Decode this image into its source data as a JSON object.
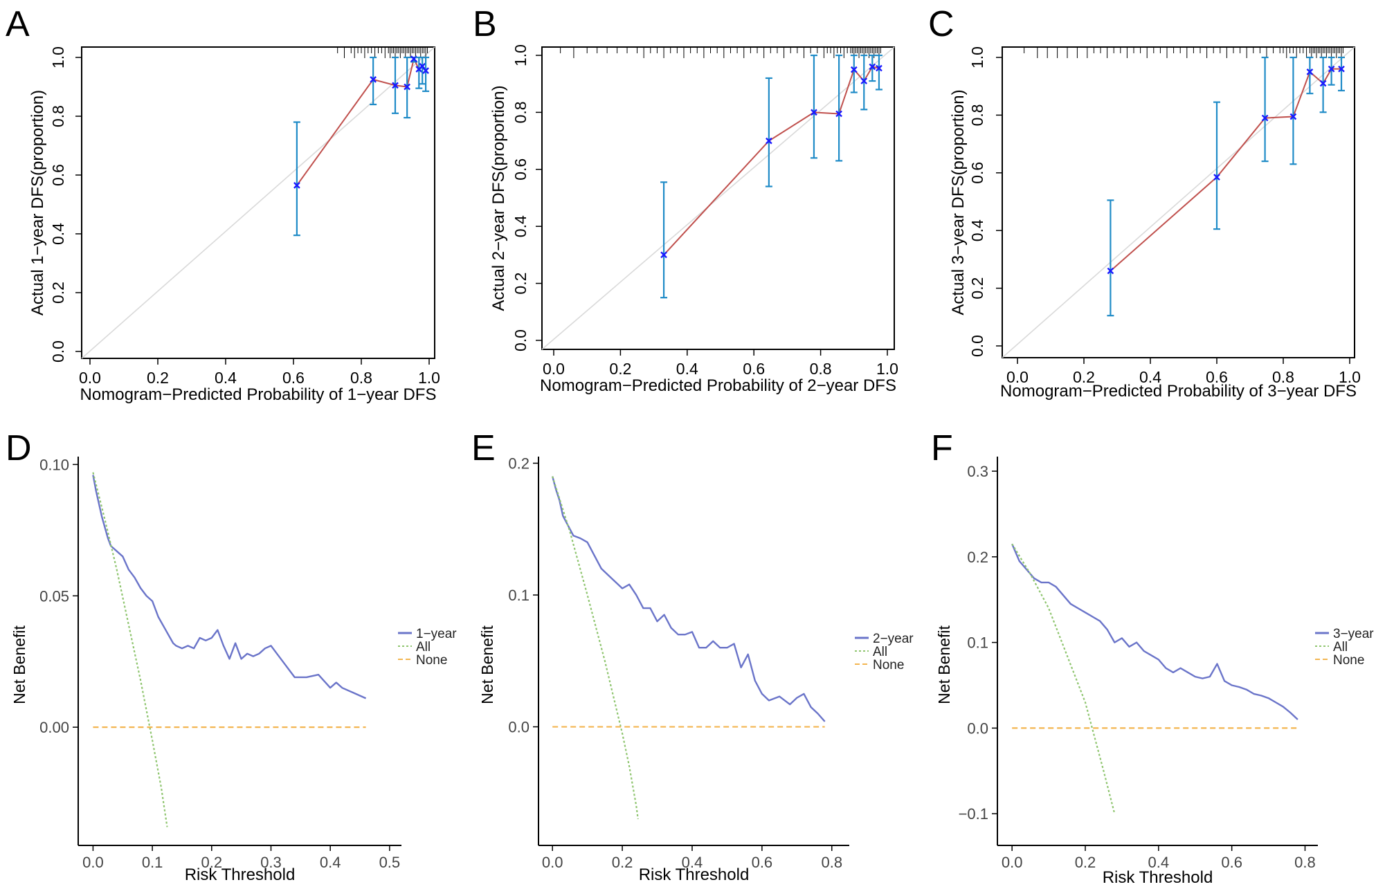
{
  "colors": {
    "axis": "#000000",
    "diagonal": "#d9d9d9",
    "calib_line": "#c0504d",
    "errorbar": "#1f8bc7",
    "point": "#1a1aff",
    "model": "#6a74c9",
    "all": "#8fc56f",
    "none": "#f3b550",
    "tick_label_dca": "#444444"
  },
  "chart_data": [
    {
      "id": "A",
      "type": "scatter",
      "panel_label": "A",
      "title": "",
      "xlabel": "Nomogram−Predicted Probability of 1−year DFS",
      "ylabel": "Actual 1−year DFS(proportion)",
      "xlim": [
        0,
        1.0
      ],
      "ylim": [
        0,
        1.0
      ],
      "xticks": [
        "0.0",
        "0.2",
        "0.4",
        "0.6",
        "0.8",
        "1.0"
      ],
      "yticks": [
        "0.0",
        "0.2",
        "0.4",
        "0.6",
        "0.8",
        "1.0"
      ],
      "diagonal": true,
      "points": [
        {
          "x": 0.61,
          "y": 0.565,
          "lo": 0.395,
          "hi": 0.78
        },
        {
          "x": 0.835,
          "y": 0.925,
          "lo": 0.84,
          "hi": 1.0
        },
        {
          "x": 0.9,
          "y": 0.905,
          "lo": 0.81,
          "hi": 1.0
        },
        {
          "x": 0.935,
          "y": 0.9,
          "lo": 0.795,
          "hi": 1.0
        },
        {
          "x": 0.955,
          "y": 0.995,
          "lo": 0.985,
          "hi": 1.0
        },
        {
          "x": 0.97,
          "y": 0.96,
          "lo": 0.895,
          "hi": 1.0
        },
        {
          "x": 0.98,
          "y": 0.97,
          "lo": 0.91,
          "hi": 1.0
        },
        {
          "x": 0.99,
          "y": 0.955,
          "lo": 0.885,
          "hi": 1.0
        }
      ],
      "rug": [
        0.73,
        0.75,
        0.77,
        0.78,
        0.79,
        0.8,
        0.81,
        0.82,
        0.83,
        0.84,
        0.85,
        0.86,
        0.87,
        0.88,
        0.885,
        0.89,
        0.895,
        0.9,
        0.905,
        0.91,
        0.915,
        0.92,
        0.925,
        0.93,
        0.935,
        0.94,
        0.945,
        0.95,
        0.955,
        0.96,
        0.965,
        0.97,
        0.975,
        0.98,
        0.985,
        0.99,
        0.995
      ]
    },
    {
      "id": "B",
      "type": "scatter",
      "panel_label": "B",
      "title": "",
      "xlabel": "Nomogram−Predicted Probability of 2−year DFS",
      "ylabel": "Actual 2−year DFS(proportion)",
      "xlim": [
        0,
        1.0
      ],
      "ylim": [
        0,
        1.0
      ],
      "xticks": [
        "0.0",
        "0.2",
        "0.4",
        "0.6",
        "0.8",
        "1.0"
      ],
      "yticks": [
        "0.0",
        "0.2",
        "0.4",
        "0.6",
        "0.8",
        "1.0"
      ],
      "diagonal": true,
      "points": [
        {
          "x": 0.33,
          "y": 0.3,
          "lo": 0.15,
          "hi": 0.555
        },
        {
          "x": 0.645,
          "y": 0.7,
          "lo": 0.54,
          "hi": 0.92
        },
        {
          "x": 0.78,
          "y": 0.8,
          "lo": 0.64,
          "hi": 1.0
        },
        {
          "x": 0.855,
          "y": 0.795,
          "lo": 0.63,
          "hi": 1.0
        },
        {
          "x": 0.9,
          "y": 0.95,
          "lo": 0.87,
          "hi": 1.0
        },
        {
          "x": 0.93,
          "y": 0.91,
          "lo": 0.81,
          "hi": 1.0
        },
        {
          "x": 0.955,
          "y": 0.96,
          "lo": 0.91,
          "hi": 1.0
        },
        {
          "x": 0.975,
          "y": 0.955,
          "lo": 0.88,
          "hi": 1.0
        }
      ],
      "rug": [
        0.02,
        0.06,
        0.1,
        0.13,
        0.16,
        0.19,
        0.22,
        0.25,
        0.27,
        0.29,
        0.31,
        0.33,
        0.35,
        0.37,
        0.39,
        0.41,
        0.43,
        0.45,
        0.47,
        0.49,
        0.51,
        0.53,
        0.55,
        0.57,
        0.59,
        0.61,
        0.63,
        0.65,
        0.67,
        0.69,
        0.71,
        0.73,
        0.75,
        0.77,
        0.79,
        0.81,
        0.82,
        0.83,
        0.84,
        0.85,
        0.86,
        0.87,
        0.88,
        0.89,
        0.895,
        0.9,
        0.905,
        0.91,
        0.915,
        0.92,
        0.925,
        0.93,
        0.935,
        0.94,
        0.945,
        0.95,
        0.955,
        0.96,
        0.965,
        0.97,
        0.975,
        0.98
      ]
    },
    {
      "id": "C",
      "type": "scatter",
      "panel_label": "C",
      "title": "",
      "xlabel": "Nomogram−Predicted Probability of 3−year DFS",
      "ylabel": "Actual 3−year DFS(proportion)",
      "xlim": [
        0,
        1.0
      ],
      "ylim": [
        0,
        1.0
      ],
      "xticks": [
        "0.0",
        "0.2",
        "0.4",
        "0.6",
        "0.8",
        "1.0"
      ],
      "yticks": [
        "0.0",
        "0.2",
        "0.4",
        "0.6",
        "0.8",
        "1.0"
      ],
      "diagonal": true,
      "points": [
        {
          "x": 0.28,
          "y": 0.26,
          "lo": 0.105,
          "hi": 0.505
        },
        {
          "x": 0.6,
          "y": 0.585,
          "lo": 0.405,
          "hi": 0.845
        },
        {
          "x": 0.745,
          "y": 0.79,
          "lo": 0.64,
          "hi": 1.0
        },
        {
          "x": 0.83,
          "y": 0.795,
          "lo": 0.63,
          "hi": 1.0
        },
        {
          "x": 0.88,
          "y": 0.95,
          "lo": 0.875,
          "hi": 1.0
        },
        {
          "x": 0.92,
          "y": 0.91,
          "lo": 0.81,
          "hi": 1.0
        },
        {
          "x": 0.945,
          "y": 0.96,
          "lo": 0.905,
          "hi": 1.0
        },
        {
          "x": 0.975,
          "y": 0.96,
          "lo": 0.885,
          "hi": 1.0
        }
      ],
      "rug": [
        0.02,
        0.06,
        0.09,
        0.12,
        0.15,
        0.18,
        0.21,
        0.23,
        0.25,
        0.27,
        0.29,
        0.31,
        0.33,
        0.35,
        0.37,
        0.39,
        0.41,
        0.43,
        0.45,
        0.47,
        0.49,
        0.51,
        0.53,
        0.55,
        0.57,
        0.59,
        0.61,
        0.63,
        0.65,
        0.67,
        0.69,
        0.71,
        0.73,
        0.75,
        0.77,
        0.79,
        0.8,
        0.81,
        0.82,
        0.83,
        0.84,
        0.85,
        0.86,
        0.87,
        0.88,
        0.885,
        0.89,
        0.895,
        0.9,
        0.905,
        0.91,
        0.915,
        0.92,
        0.925,
        0.93,
        0.935,
        0.94,
        0.945,
        0.95,
        0.955,
        0.96,
        0.965,
        0.97,
        0.975,
        0.98
      ]
    },
    {
      "id": "D",
      "type": "line",
      "panel_label": "D",
      "title": "",
      "xlabel": "Risk Threshold",
      "ylabel": "Net Benefit",
      "xlim": [
        -0.025,
        0.52
      ],
      "ylim": [
        -0.045,
        0.103
      ],
      "xticks": [
        {
          "v": 0.0,
          "label": "0.0"
        },
        {
          "v": 0.1,
          "label": "0.1"
        },
        {
          "v": 0.2,
          "label": "0.2"
        },
        {
          "v": 0.3,
          "label": "0.3"
        },
        {
          "v": 0.4,
          "label": "0.4"
        },
        {
          "v": 0.5,
          "label": "0.5"
        }
      ],
      "yticks": [
        {
          "v": 0.0,
          "label": "0.00"
        },
        {
          "v": 0.05,
          "label": "0.05"
        },
        {
          "v": 0.1,
          "label": "0.10"
        }
      ],
      "legend": [
        "1−year",
        "All",
        "None"
      ],
      "legend_position": "right",
      "series": [
        {
          "name": "1−year",
          "style": "model",
          "x": [
            0.0,
            0.005,
            0.01,
            0.015,
            0.02,
            0.025,
            0.03,
            0.035,
            0.04,
            0.05,
            0.06,
            0.07,
            0.075,
            0.08,
            0.09,
            0.1,
            0.105,
            0.11,
            0.115,
            0.12,
            0.125,
            0.13,
            0.135,
            0.14,
            0.15,
            0.16,
            0.17,
            0.18,
            0.19,
            0.2,
            0.21,
            0.22,
            0.23,
            0.24,
            0.25,
            0.26,
            0.27,
            0.28,
            0.29,
            0.3,
            0.31,
            0.32,
            0.34,
            0.36,
            0.38,
            0.4,
            0.41,
            0.42,
            0.44,
            0.46
          ],
          "y": [
            0.096,
            0.09,
            0.085,
            0.08,
            0.076,
            0.072,
            0.069,
            0.068,
            0.067,
            0.065,
            0.06,
            0.057,
            0.055,
            0.053,
            0.05,
            0.048,
            0.045,
            0.042,
            0.04,
            0.038,
            0.036,
            0.034,
            0.032,
            0.031,
            0.03,
            0.031,
            0.03,
            0.034,
            0.033,
            0.034,
            0.037,
            0.031,
            0.026,
            0.032,
            0.026,
            0.028,
            0.027,
            0.028,
            0.03,
            0.031,
            0.028,
            0.025,
            0.019,
            0.019,
            0.02,
            0.015,
            0.017,
            0.015,
            0.013,
            0.011
          ]
        },
        {
          "name": "All",
          "style": "all",
          "x": [
            0.0,
            0.02,
            0.04,
            0.06,
            0.08,
            0.1,
            0.115,
            0.125
          ],
          "y": [
            0.097,
            0.079,
            0.06,
            0.039,
            0.018,
            -0.005,
            -0.023,
            -0.038
          ]
        },
        {
          "name": "None",
          "style": "none",
          "x": [
            0.0,
            0.46
          ],
          "y": [
            0.0,
            0.0
          ]
        }
      ]
    },
    {
      "id": "E",
      "type": "line",
      "panel_label": "E",
      "title": "",
      "xlabel": "Risk Threshold",
      "ylabel": "Net Benefit",
      "xlim": [
        -0.04,
        0.85
      ],
      "ylim": [
        -0.09,
        0.205
      ],
      "xticks": [
        {
          "v": 0.0,
          "label": "0.0"
        },
        {
          "v": 0.2,
          "label": "0.2"
        },
        {
          "v": 0.4,
          "label": "0.4"
        },
        {
          "v": 0.6,
          "label": "0.6"
        },
        {
          "v": 0.8,
          "label": "0.8"
        }
      ],
      "yticks": [
        {
          "v": 0.0,
          "label": "0.0"
        },
        {
          "v": 0.1,
          "label": "0.1"
        },
        {
          "v": 0.2,
          "label": "0.2"
        }
      ],
      "legend": [
        "2−year",
        "All",
        "None"
      ],
      "legend_position": "right",
      "series": [
        {
          "name": "2−year",
          "style": "model",
          "x": [
            0.0,
            0.01,
            0.02,
            0.03,
            0.05,
            0.06,
            0.08,
            0.1,
            0.12,
            0.14,
            0.16,
            0.18,
            0.2,
            0.22,
            0.24,
            0.26,
            0.28,
            0.3,
            0.32,
            0.34,
            0.36,
            0.38,
            0.4,
            0.42,
            0.44,
            0.46,
            0.48,
            0.5,
            0.52,
            0.54,
            0.56,
            0.58,
            0.6,
            0.62,
            0.65,
            0.68,
            0.7,
            0.72,
            0.74,
            0.76,
            0.78
          ],
          "y": [
            0.19,
            0.18,
            0.172,
            0.16,
            0.15,
            0.145,
            0.143,
            0.14,
            0.13,
            0.12,
            0.115,
            0.11,
            0.105,
            0.108,
            0.1,
            0.09,
            0.09,
            0.08,
            0.085,
            0.075,
            0.07,
            0.07,
            0.072,
            0.06,
            0.06,
            0.065,
            0.06,
            0.06,
            0.063,
            0.045,
            0.055,
            0.035,
            0.025,
            0.02,
            0.023,
            0.017,
            0.022,
            0.025,
            0.015,
            0.01,
            0.004
          ]
        },
        {
          "name": "All",
          "style": "all",
          "x": [
            0.0,
            0.05,
            0.1,
            0.15,
            0.2,
            0.22,
            0.24,
            0.245
          ],
          "y": [
            0.19,
            0.148,
            0.1,
            0.05,
            -0.005,
            -0.03,
            -0.06,
            -0.07
          ]
        },
        {
          "name": "None",
          "style": "none",
          "x": [
            0.0,
            0.78
          ],
          "y": [
            0.0,
            0.0
          ]
        }
      ]
    },
    {
      "id": "F",
      "type": "line",
      "panel_label": "F",
      "title": "",
      "xlabel": "Risk Threshold",
      "ylabel": "Net Benefit",
      "xlim": [
        -0.04,
        0.835
      ],
      "ylim": [
        -0.137,
        0.317
      ],
      "xticks": [
        {
          "v": 0.0,
          "label": "0.0"
        },
        {
          "v": 0.2,
          "label": "0.2"
        },
        {
          "v": 0.4,
          "label": "0.4"
        },
        {
          "v": 0.6,
          "label": "0.6"
        },
        {
          "v": 0.8,
          "label": "0.8"
        }
      ],
      "yticks": [
        {
          "v": -0.1,
          "label": "−0.1"
        },
        {
          "v": 0.0,
          "label": "0.0"
        },
        {
          "v": 0.1,
          "label": "0.1"
        },
        {
          "v": 0.2,
          "label": "0.2"
        },
        {
          "v": 0.3,
          "label": "0.3"
        }
      ],
      "legend": [
        "3−year",
        "All",
        "None"
      ],
      "legend_position": "right",
      "series": [
        {
          "name": "3−year",
          "style": "model",
          "x": [
            0.0,
            0.01,
            0.02,
            0.04,
            0.06,
            0.08,
            0.1,
            0.12,
            0.14,
            0.16,
            0.18,
            0.2,
            0.22,
            0.24,
            0.26,
            0.28,
            0.3,
            0.32,
            0.34,
            0.36,
            0.38,
            0.4,
            0.42,
            0.44,
            0.46,
            0.48,
            0.5,
            0.52,
            0.54,
            0.56,
            0.58,
            0.6,
            0.62,
            0.64,
            0.66,
            0.68,
            0.7,
            0.72,
            0.74,
            0.76,
            0.78
          ],
          "y": [
            0.215,
            0.205,
            0.195,
            0.185,
            0.175,
            0.17,
            0.17,
            0.165,
            0.155,
            0.145,
            0.14,
            0.135,
            0.13,
            0.125,
            0.115,
            0.1,
            0.105,
            0.095,
            0.1,
            0.09,
            0.085,
            0.08,
            0.07,
            0.065,
            0.07,
            0.065,
            0.06,
            0.058,
            0.06,
            0.075,
            0.055,
            0.05,
            0.048,
            0.045,
            0.04,
            0.038,
            0.035,
            0.03,
            0.025,
            0.018,
            0.01
          ]
        },
        {
          "name": "All",
          "style": "all",
          "x": [
            0.0,
            0.05,
            0.1,
            0.15,
            0.2,
            0.25,
            0.28
          ],
          "y": [
            0.215,
            0.18,
            0.14,
            0.085,
            0.03,
            -0.05,
            -0.1
          ]
        },
        {
          "name": "None",
          "style": "none",
          "x": [
            0.0,
            0.78
          ],
          "y": [
            0.0,
            0.0
          ]
        }
      ]
    }
  ]
}
